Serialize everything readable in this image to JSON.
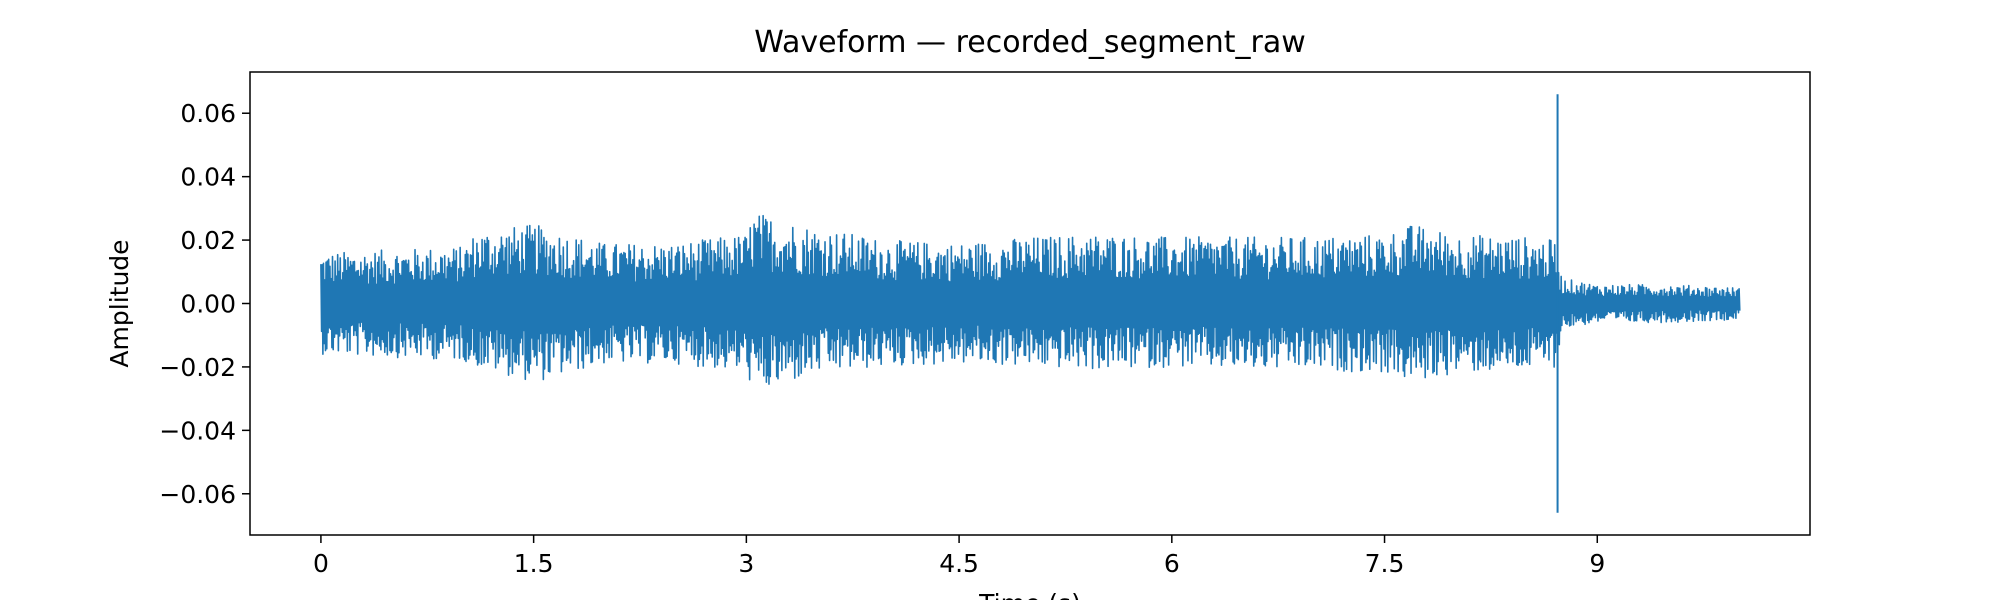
{
  "chart_data": {
    "type": "line",
    "title": "Waveform — recorded_segment_raw",
    "xlabel": "Time (s)",
    "ylabel": "Amplitude",
    "xlim": [
      -0.5,
      10.5
    ],
    "ylim": [
      -0.073,
      0.073
    ],
    "grid": false,
    "legend": "none",
    "x_ticks": [
      0,
      1.5,
      3,
      4.5,
      6,
      7.5,
      9
    ],
    "x_tick_labels": [
      "0",
      "1.5",
      "3",
      "4.5",
      "6",
      "7.5",
      "9"
    ],
    "y_ticks": [
      0.06,
      0.04,
      0.02,
      0.0,
      -0.02,
      -0.04,
      -0.06
    ],
    "y_tick_labels": [
      "0.06",
      "0.04",
      "0.02",
      "0.00",
      "−0.02",
      "−0.04",
      "−0.06"
    ],
    "series": [
      {
        "color": "#1f77b4",
        "duration_s": 10.0,
        "envelope": {
          "time_s": [
            0.0,
            0.5,
            1.0,
            1.1,
            1.5,
            2.0,
            2.5,
            3.0,
            3.05,
            3.5,
            4.0,
            4.5,
            5.0,
            5.5,
            6.0,
            6.5,
            7.0,
            7.5,
            7.7,
            8.0,
            8.5,
            8.7,
            8.75,
            9.0,
            9.5,
            10.0
          ],
          "upper": [
            0.016,
            0.017,
            0.018,
            0.023,
            0.025,
            0.019,
            0.019,
            0.022,
            0.029,
            0.024,
            0.02,
            0.019,
            0.021,
            0.022,
            0.021,
            0.021,
            0.021,
            0.022,
            0.025,
            0.022,
            0.021,
            0.02,
            0.008,
            0.006,
            0.006,
            0.005
          ],
          "lower": [
            -0.016,
            -0.017,
            -0.018,
            -0.02,
            -0.025,
            -0.019,
            -0.019,
            -0.022,
            -0.029,
            -0.022,
            -0.02,
            -0.019,
            -0.02,
            -0.021,
            -0.02,
            -0.021,
            -0.021,
            -0.022,
            -0.025,
            -0.022,
            -0.021,
            -0.02,
            -0.008,
            -0.006,
            -0.006,
            -0.005
          ]
        },
        "spike": {
          "time_s": 8.72,
          "max": 0.066,
          "min": -0.066
        }
      }
    ]
  }
}
